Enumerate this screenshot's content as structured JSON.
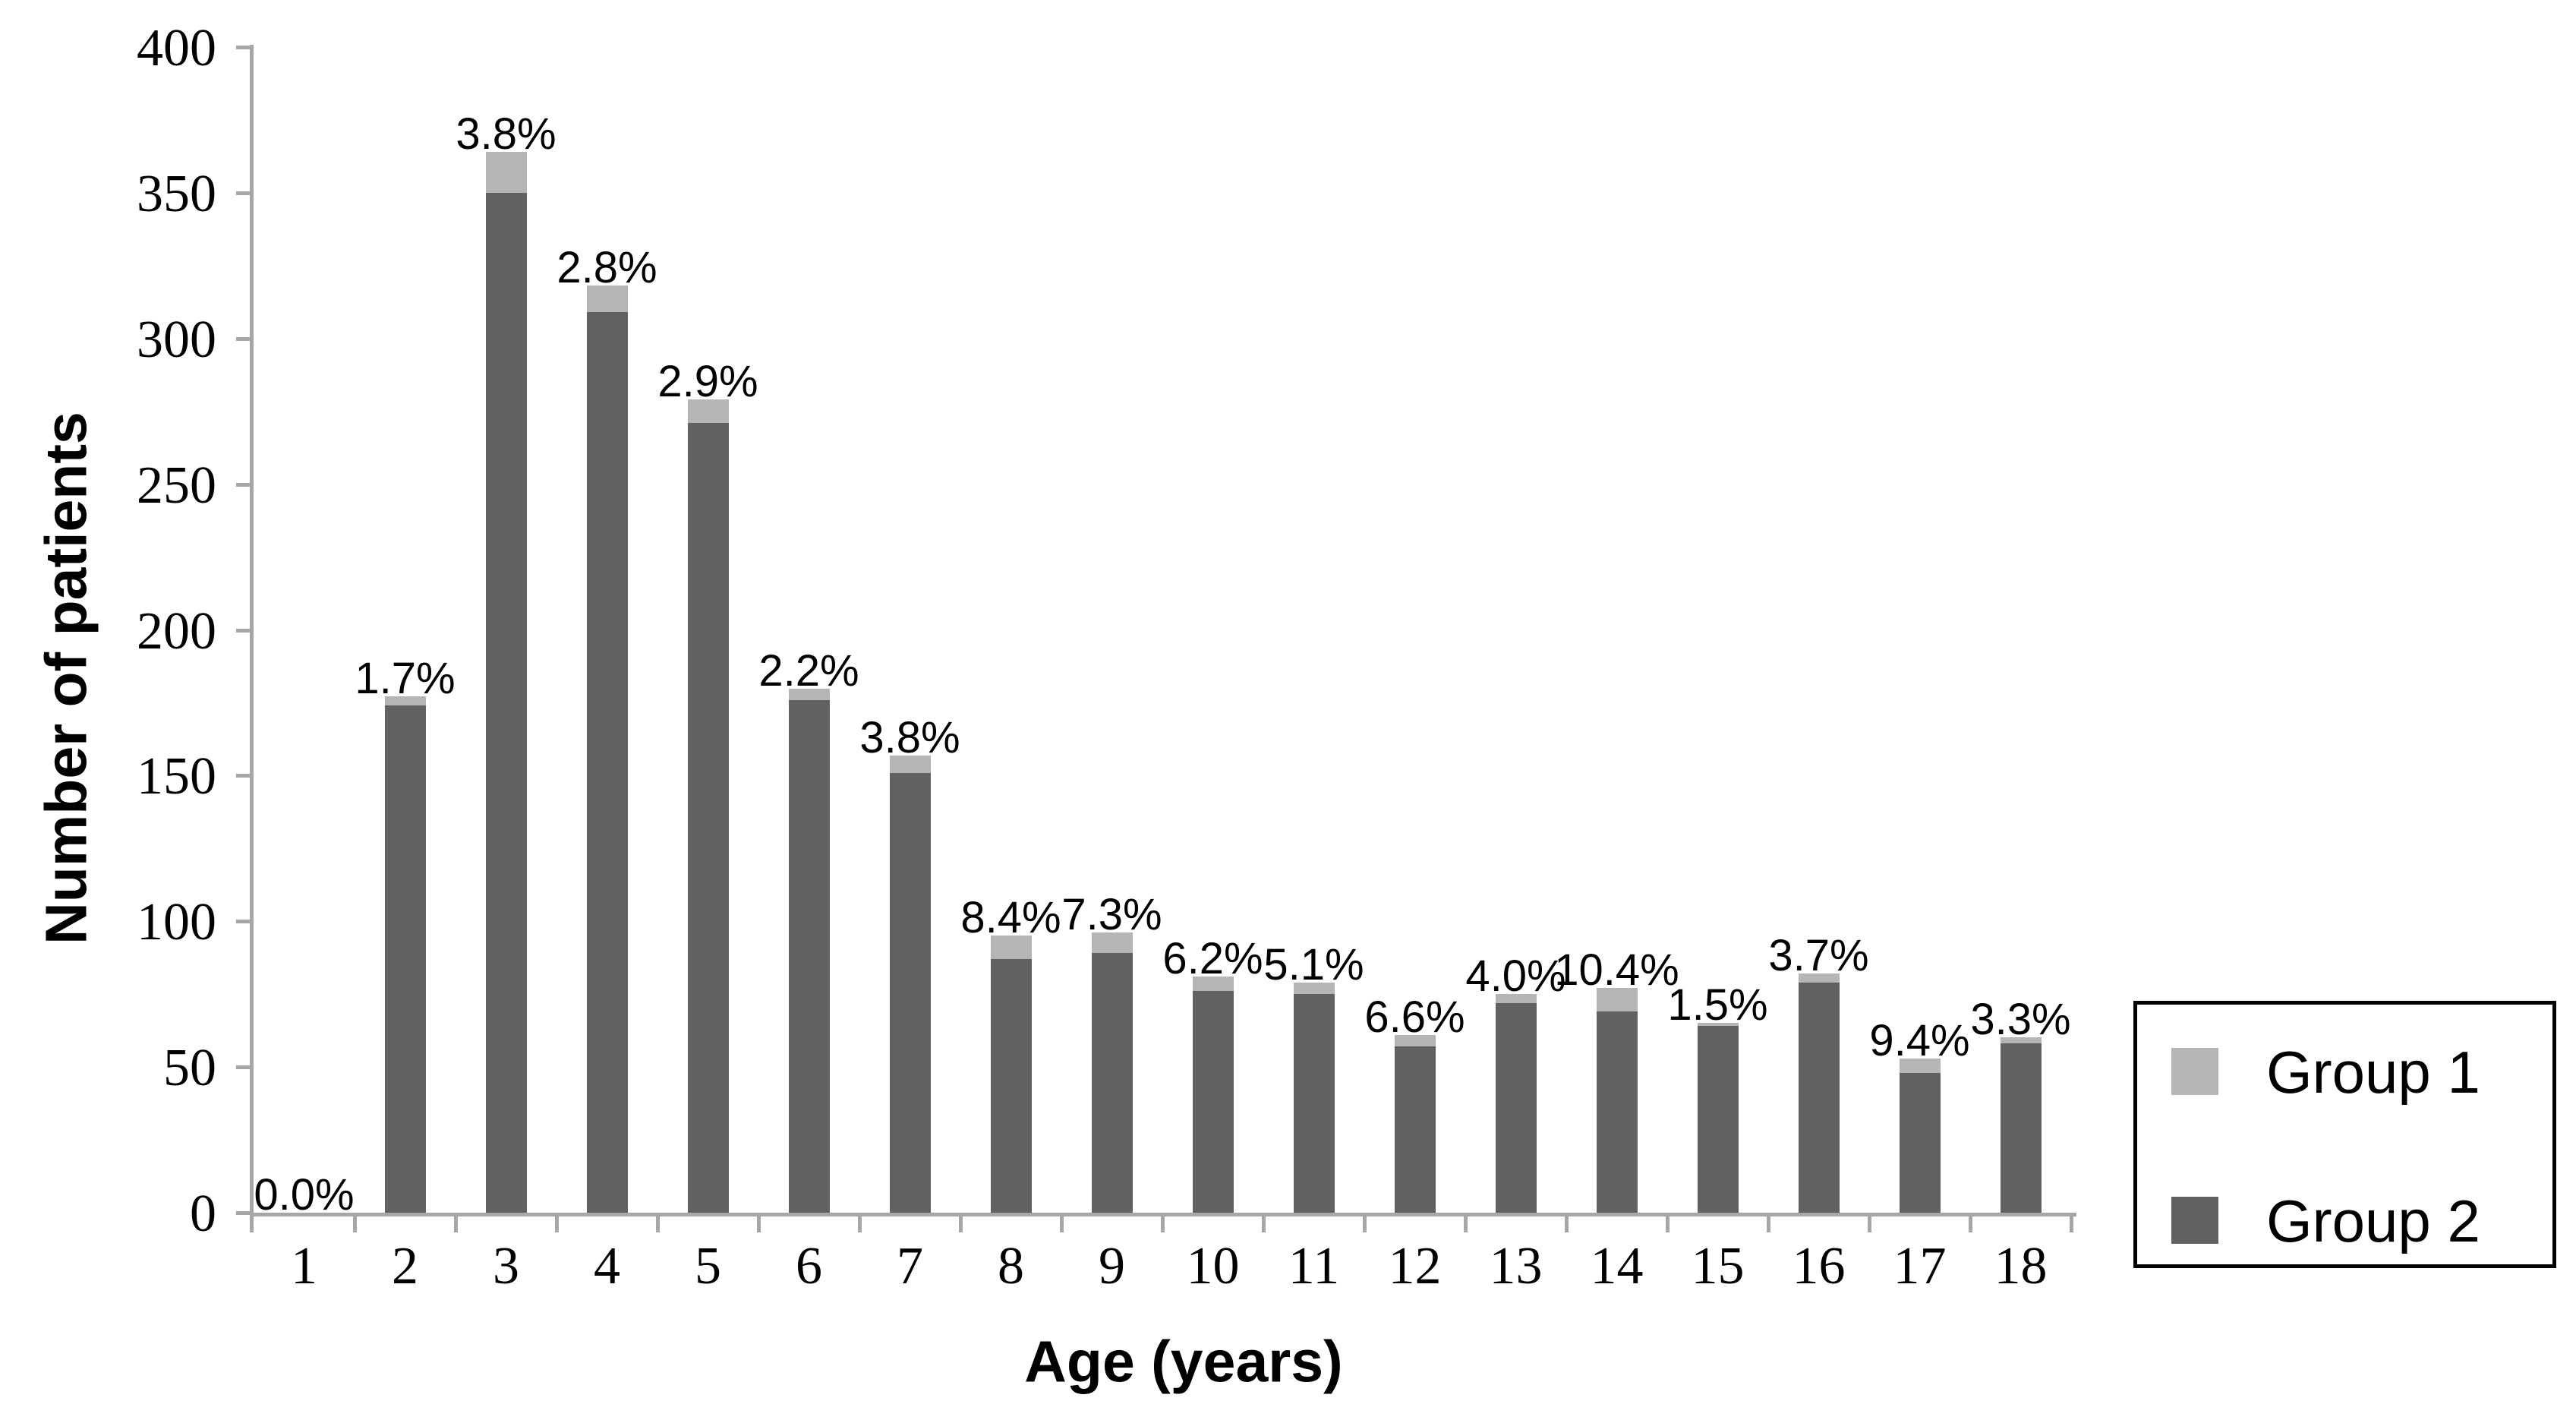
{
  "chart_data": {
    "type": "bar",
    "stacked": true,
    "title": "",
    "xlabel": "Age (years)",
    "ylabel": "Number of patients",
    "categories": [
      "1",
      "2",
      "3",
      "4",
      "5",
      "6",
      "7",
      "8",
      "9",
      "10",
      "11",
      "12",
      "13",
      "14",
      "15",
      "16",
      "17",
      "18"
    ],
    "series": [
      {
        "name": "Group 1",
        "color": "#b5b5b5",
        "values": [
          0,
          3,
          14,
          9,
          8,
          4,
          6,
          8,
          7,
          5,
          4,
          4,
          3,
          8,
          1,
          3,
          5,
          2
        ]
      },
      {
        "name": "Group 2",
        "color": "#616161",
        "values": [
          0,
          174,
          350,
          309,
          271,
          176,
          151,
          87,
          89,
          76,
          75,
          57,
          72,
          69,
          64,
          79,
          48,
          58
        ]
      }
    ],
    "totals": [
      0,
      177,
      364,
      318,
      279,
      180,
      157,
      95,
      96,
      81,
      79,
      61,
      75,
      77,
      65,
      82,
      53,
      60
    ],
    "bar_labels": [
      "0.0%",
      "1.7%",
      "3.8%",
      "2.8%",
      "2.9%",
      "2.2%",
      "3.8%",
      "8.4%",
      "7.3%",
      "6.2%",
      "5.1%",
      "6.6%",
      "4.0%",
      "10.4%",
      "1.5%",
      "3.7%",
      "9.4%",
      "3.3%"
    ],
    "ylim": [
      0,
      400
    ],
    "ytick_step": 50,
    "ytick_labels": [
      "0",
      "50",
      "100",
      "150",
      "200",
      "250",
      "300",
      "350",
      "400"
    ],
    "grid": false,
    "legend_position": "right",
    "colors": {
      "axis": "#a6a6a6",
      "text": "#000000"
    }
  }
}
